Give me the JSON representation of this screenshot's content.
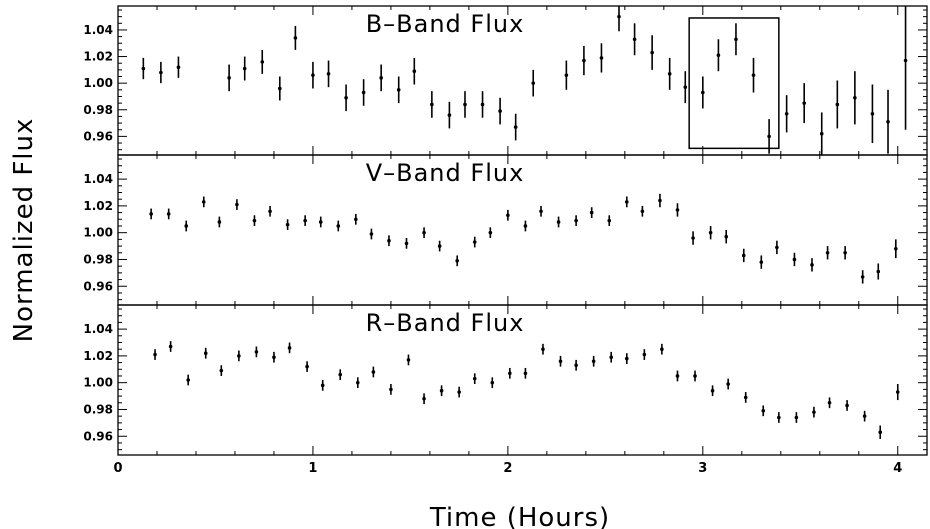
{
  "chart_data": {
    "type": "scatter",
    "xlabel": "Time (Hours)",
    "ylabel": "Normalized Flux",
    "xlim": [
      0,
      4.15
    ],
    "ylim": [
      0.946,
      1.058
    ],
    "x_ticks": [
      "0",
      "1",
      "2",
      "3",
      "4"
    ],
    "y_ticks": [
      "1.04",
      "1.02",
      "1.00",
      "0.98",
      "0.96"
    ],
    "grid": false,
    "panels": [
      {
        "title": "B–Band Flux",
        "points": [
          {
            "x": 0.13,
            "y": 1.011,
            "err": 0.008
          },
          {
            "x": 0.22,
            "y": 1.008,
            "err": 0.008
          },
          {
            "x": 0.31,
            "y": 1.012,
            "err": 0.008
          },
          {
            "x": 0.57,
            "y": 1.004,
            "err": 0.01
          },
          {
            "x": 0.65,
            "y": 1.011,
            "err": 0.009
          },
          {
            "x": 0.74,
            "y": 1.016,
            "err": 0.009
          },
          {
            "x": 0.83,
            "y": 0.996,
            "err": 0.009
          },
          {
            "x": 0.91,
            "y": 1.034,
            "err": 0.009
          },
          {
            "x": 1.0,
            "y": 1.006,
            "err": 0.01
          },
          {
            "x": 1.08,
            "y": 1.007,
            "err": 0.01
          },
          {
            "x": 1.17,
            "y": 0.989,
            "err": 0.01
          },
          {
            "x": 1.26,
            "y": 0.993,
            "err": 0.01
          },
          {
            "x": 1.35,
            "y": 1.004,
            "err": 0.01
          },
          {
            "x": 1.44,
            "y": 0.995,
            "err": 0.01
          },
          {
            "x": 1.52,
            "y": 1.009,
            "err": 0.01
          },
          {
            "x": 1.61,
            "y": 0.984,
            "err": 0.01
          },
          {
            "x": 1.7,
            "y": 0.976,
            "err": 0.01
          },
          {
            "x": 1.78,
            "y": 0.984,
            "err": 0.01
          },
          {
            "x": 1.87,
            "y": 0.984,
            "err": 0.01
          },
          {
            "x": 1.96,
            "y": 0.979,
            "err": 0.01
          },
          {
            "x": 2.04,
            "y": 0.967,
            "err": 0.01
          },
          {
            "x": 2.13,
            "y": 1.0,
            "err": 0.01
          },
          {
            "x": 2.3,
            "y": 1.006,
            "err": 0.011
          },
          {
            "x": 2.39,
            "y": 1.017,
            "err": 0.011
          },
          {
            "x": 2.48,
            "y": 1.019,
            "err": 0.011
          },
          {
            "x": 2.57,
            "y": 1.05,
            "err": 0.011
          },
          {
            "x": 2.65,
            "y": 1.033,
            "err": 0.012
          },
          {
            "x": 2.74,
            "y": 1.023,
            "err": 0.013
          },
          {
            "x": 2.83,
            "y": 1.007,
            "err": 0.012
          },
          {
            "x": 2.91,
            "y": 0.997,
            "err": 0.012
          },
          {
            "x": 3.0,
            "y": 0.993,
            "err": 0.012
          },
          {
            "x": 3.08,
            "y": 1.021,
            "err": 0.012
          },
          {
            "x": 3.17,
            "y": 1.033,
            "err": 0.012
          },
          {
            "x": 3.26,
            "y": 1.006,
            "err": 0.013
          },
          {
            "x": 3.34,
            "y": 0.96,
            "err": 0.013
          },
          {
            "x": 3.43,
            "y": 0.977,
            "err": 0.014
          },
          {
            "x": 3.52,
            "y": 0.985,
            "err": 0.015
          },
          {
            "x": 3.61,
            "y": 0.962,
            "err": 0.016
          },
          {
            "x": 3.69,
            "y": 0.984,
            "err": 0.018
          },
          {
            "x": 3.78,
            "y": 0.989,
            "err": 0.02
          },
          {
            "x": 3.87,
            "y": 0.977,
            "err": 0.022
          },
          {
            "x": 3.95,
            "y": 0.971,
            "err": 0.024
          },
          {
            "x": 4.04,
            "y": 1.017,
            "err": 0.052
          }
        ],
        "box": {
          "x1": 2.93,
          "x2": 3.39,
          "y1": 0.951,
          "y2": 1.049
        }
      },
      {
        "title": "V–Band Flux",
        "points": [
          {
            "x": 0.17,
            "y": 1.014,
            "err": 0.004
          },
          {
            "x": 0.26,
            "y": 1.014,
            "err": 0.004
          },
          {
            "x": 0.35,
            "y": 1.005,
            "err": 0.004
          },
          {
            "x": 0.44,
            "y": 1.023,
            "err": 0.004
          },
          {
            "x": 0.52,
            "y": 1.008,
            "err": 0.004
          },
          {
            "x": 0.61,
            "y": 1.021,
            "err": 0.004
          },
          {
            "x": 0.7,
            "y": 1.009,
            "err": 0.004
          },
          {
            "x": 0.78,
            "y": 1.016,
            "err": 0.004
          },
          {
            "x": 0.87,
            "y": 1.006,
            "err": 0.004
          },
          {
            "x": 0.96,
            "y": 1.009,
            "err": 0.004
          },
          {
            "x": 1.04,
            "y": 1.008,
            "err": 0.004
          },
          {
            "x": 1.13,
            "y": 1.005,
            "err": 0.004
          },
          {
            "x": 1.22,
            "y": 1.01,
            "err": 0.004
          },
          {
            "x": 1.3,
            "y": 0.999,
            "err": 0.004
          },
          {
            "x": 1.39,
            "y": 0.994,
            "err": 0.004
          },
          {
            "x": 1.48,
            "y": 0.992,
            "err": 0.004
          },
          {
            "x": 1.57,
            "y": 1.0,
            "err": 0.004
          },
          {
            "x": 1.65,
            "y": 0.99,
            "err": 0.004
          },
          {
            "x": 1.74,
            "y": 0.979,
            "err": 0.004
          },
          {
            "x": 1.83,
            "y": 0.993,
            "err": 0.004
          },
          {
            "x": 1.91,
            "y": 1.0,
            "err": 0.004
          },
          {
            "x": 2.0,
            "y": 1.013,
            "err": 0.004
          },
          {
            "x": 2.09,
            "y": 1.005,
            "err": 0.004
          },
          {
            "x": 2.17,
            "y": 1.016,
            "err": 0.004
          },
          {
            "x": 2.26,
            "y": 1.008,
            "err": 0.004
          },
          {
            "x": 2.35,
            "y": 1.009,
            "err": 0.004
          },
          {
            "x": 2.43,
            "y": 1.015,
            "err": 0.004
          },
          {
            "x": 2.52,
            "y": 1.009,
            "err": 0.004
          },
          {
            "x": 2.61,
            "y": 1.023,
            "err": 0.004
          },
          {
            "x": 2.69,
            "y": 1.016,
            "err": 0.004
          },
          {
            "x": 2.78,
            "y": 1.024,
            "err": 0.005
          },
          {
            "x": 2.87,
            "y": 1.017,
            "err": 0.005
          },
          {
            "x": 2.95,
            "y": 0.996,
            "err": 0.005
          },
          {
            "x": 3.04,
            "y": 1.0,
            "err": 0.005
          },
          {
            "x": 3.12,
            "y": 0.997,
            "err": 0.005
          },
          {
            "x": 3.21,
            "y": 0.983,
            "err": 0.005
          },
          {
            "x": 3.3,
            "y": 0.978,
            "err": 0.005
          },
          {
            "x": 3.38,
            "y": 0.989,
            "err": 0.005
          },
          {
            "x": 3.47,
            "y": 0.98,
            "err": 0.005
          },
          {
            "x": 3.56,
            "y": 0.976,
            "err": 0.005
          },
          {
            "x": 3.64,
            "y": 0.985,
            "err": 0.005
          },
          {
            "x": 3.73,
            "y": 0.985,
            "err": 0.005
          },
          {
            "x": 3.82,
            "y": 0.967,
            "err": 0.005
          },
          {
            "x": 3.9,
            "y": 0.971,
            "err": 0.006
          },
          {
            "x": 3.99,
            "y": 0.988,
            "err": 0.007
          }
        ]
      },
      {
        "title": "R–Band Flux",
        "points": [
          {
            "x": 0.19,
            "y": 1.021,
            "err": 0.004
          },
          {
            "x": 0.27,
            "y": 1.027,
            "err": 0.004
          },
          {
            "x": 0.36,
            "y": 1.002,
            "err": 0.004
          },
          {
            "x": 0.45,
            "y": 1.022,
            "err": 0.004
          },
          {
            "x": 0.53,
            "y": 1.009,
            "err": 0.004
          },
          {
            "x": 0.62,
            "y": 1.02,
            "err": 0.004
          },
          {
            "x": 0.71,
            "y": 1.023,
            "err": 0.004
          },
          {
            "x": 0.8,
            "y": 1.019,
            "err": 0.004
          },
          {
            "x": 0.88,
            "y": 1.026,
            "err": 0.004
          },
          {
            "x": 0.97,
            "y": 1.012,
            "err": 0.004
          },
          {
            "x": 1.05,
            "y": 0.998,
            "err": 0.004
          },
          {
            "x": 1.14,
            "y": 1.006,
            "err": 0.004
          },
          {
            "x": 1.23,
            "y": 1.0,
            "err": 0.004
          },
          {
            "x": 1.31,
            "y": 1.008,
            "err": 0.004
          },
          {
            "x": 1.4,
            "y": 0.995,
            "err": 0.004
          },
          {
            "x": 1.49,
            "y": 1.017,
            "err": 0.004
          },
          {
            "x": 1.57,
            "y": 0.988,
            "err": 0.004
          },
          {
            "x": 1.66,
            "y": 0.994,
            "err": 0.004
          },
          {
            "x": 1.75,
            "y": 0.993,
            "err": 0.004
          },
          {
            "x": 1.83,
            "y": 1.003,
            "err": 0.004
          },
          {
            "x": 1.92,
            "y": 1.0,
            "err": 0.004
          },
          {
            "x": 2.01,
            "y": 1.007,
            "err": 0.004
          },
          {
            "x": 2.09,
            "y": 1.007,
            "err": 0.004
          },
          {
            "x": 2.18,
            "y": 1.025,
            "err": 0.004
          },
          {
            "x": 2.27,
            "y": 1.016,
            "err": 0.004
          },
          {
            "x": 2.35,
            "y": 1.013,
            "err": 0.004
          },
          {
            "x": 2.44,
            "y": 1.016,
            "err": 0.004
          },
          {
            "x": 2.53,
            "y": 1.019,
            "err": 0.004
          },
          {
            "x": 2.61,
            "y": 1.018,
            "err": 0.004
          },
          {
            "x": 2.7,
            "y": 1.021,
            "err": 0.004
          },
          {
            "x": 2.79,
            "y": 1.025,
            "err": 0.004
          },
          {
            "x": 2.87,
            "y": 1.005,
            "err": 0.004
          },
          {
            "x": 2.96,
            "y": 1.005,
            "err": 0.004
          },
          {
            "x": 3.05,
            "y": 0.994,
            "err": 0.004
          },
          {
            "x": 3.13,
            "y": 0.999,
            "err": 0.004
          },
          {
            "x": 3.22,
            "y": 0.989,
            "err": 0.004
          },
          {
            "x": 3.31,
            "y": 0.979,
            "err": 0.004
          },
          {
            "x": 3.39,
            "y": 0.974,
            "err": 0.004
          },
          {
            "x": 3.48,
            "y": 0.974,
            "err": 0.004
          },
          {
            "x": 3.57,
            "y": 0.978,
            "err": 0.004
          },
          {
            "x": 3.65,
            "y": 0.985,
            "err": 0.004
          },
          {
            "x": 3.74,
            "y": 0.983,
            "err": 0.004
          },
          {
            "x": 3.83,
            "y": 0.975,
            "err": 0.004
          },
          {
            "x": 3.91,
            "y": 0.963,
            "err": 0.005
          },
          {
            "x": 4.0,
            "y": 0.993,
            "err": 0.006
          }
        ]
      }
    ]
  }
}
